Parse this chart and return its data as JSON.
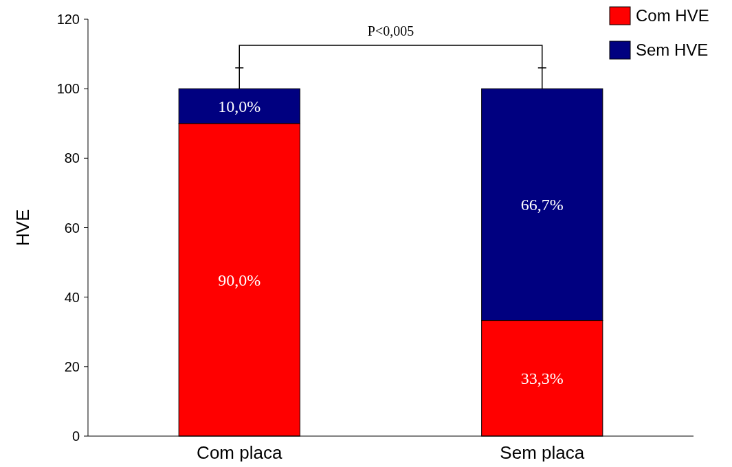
{
  "chart_data": {
    "type": "bar",
    "stacked": true,
    "ylabel": "HVE",
    "categories": [
      "Com placa",
      "Sem placa"
    ],
    "series": [
      {
        "name": "Com HVE",
        "color": "#ff0000",
        "values": [
          90,
          33.3
        ],
        "value_labels": [
          "90,0%",
          "33,3%"
        ]
      },
      {
        "name": "Sem HVE",
        "color": "#000080",
        "values": [
          10,
          66.7
        ],
        "value_labels": [
          "10,0%",
          "66,7%"
        ],
        "errors": [
          [
            100,
            106
          ],
          [
            100,
            106
          ]
        ]
      }
    ],
    "ylim": [
      0,
      120
    ],
    "yticks": [
      0,
      20,
      40,
      60,
      80,
      100,
      120
    ],
    "grid": false,
    "legend": "top right",
    "annotations": [
      "P<0,005"
    ]
  }
}
